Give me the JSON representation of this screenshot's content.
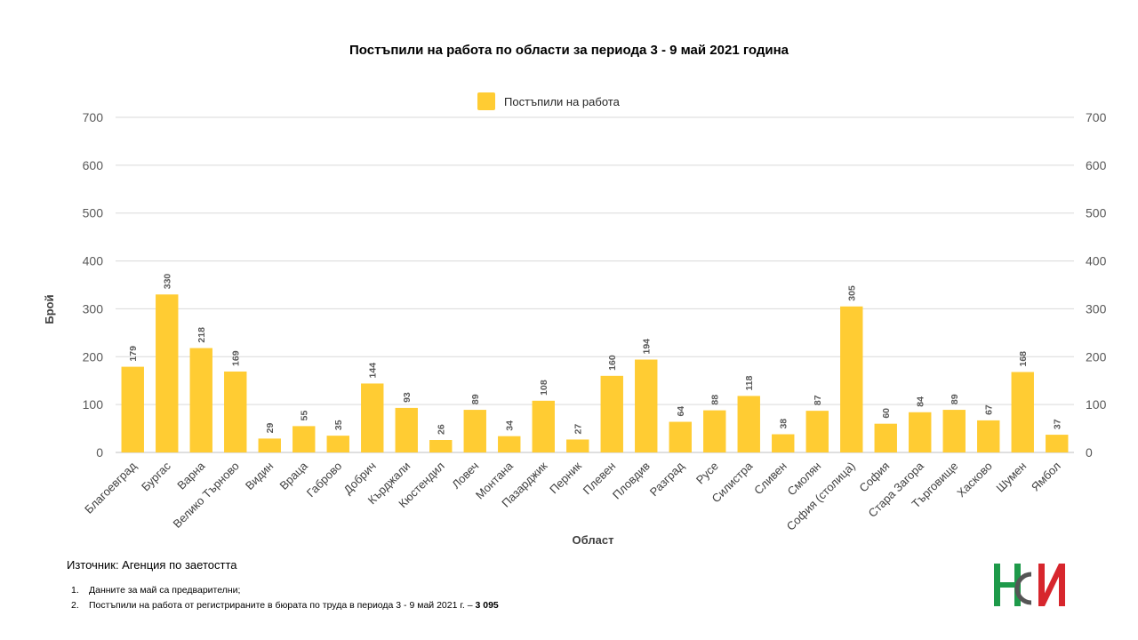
{
  "chart_data": {
    "type": "bar",
    "title": "Постъпили на работа по области за периода 3 - 9 май 2021 година",
    "xlabel": "Област",
    "ylabel": "Брой",
    "ylim": [
      0,
      700
    ],
    "yticks": [
      0,
      100,
      200,
      300,
      400,
      500,
      600,
      700
    ],
    "secondary_axis": true,
    "grid": true,
    "legend_position": "top-center",
    "categories": [
      "Благоевград",
      "Бургас",
      "Варна",
      "Велико Търново",
      "Видин",
      "Враца",
      "Габрово",
      "Добрич",
      "Кърджали",
      "Кюстендил",
      "Ловеч",
      "Монтана",
      "Пазарджик",
      "Перник",
      "Плевен",
      "Пловдив",
      "Разград",
      "Русе",
      "Силистра",
      "Сливен",
      "Смолян",
      "София (столица)",
      "София",
      "Стара Загора",
      "Търговище",
      "Хасково",
      "Шумен",
      "Ямбол"
    ],
    "series": [
      {
        "name": "Постъпили на работа",
        "color": "#FFCC33",
        "values": [
          179,
          330,
          218,
          169,
          29,
          55,
          35,
          144,
          93,
          26,
          89,
          34,
          108,
          27,
          160,
          194,
          64,
          88,
          118,
          38,
          87,
          305,
          60,
          84,
          89,
          67,
          168,
          37
        ]
      }
    ]
  },
  "footer": {
    "source": "Източник: Агенция по заетостта",
    "notes": [
      {
        "num": "1.",
        "text": "Данните за май са предварителни;",
        "bold": ""
      },
      {
        "num": "2.",
        "text": "Постъпили на работа от регистрираните в бюрата по труда в периода 3 - 9 май 2021 г. – ",
        "bold": "3 095"
      }
    ]
  },
  "logo": {
    "name": "nsi-logo",
    "colors": {
      "green": "#1E9A4A",
      "red": "#D7262D",
      "gray": "#555555"
    }
  }
}
